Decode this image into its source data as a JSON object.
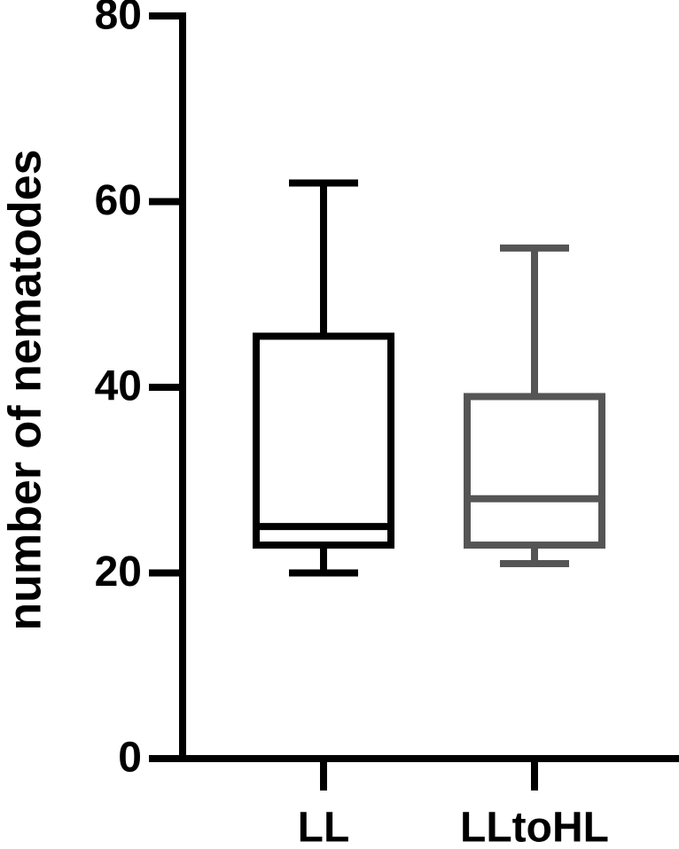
{
  "chart_data": {
    "type": "box",
    "y_label": "number of nematodes",
    "categories": [
      "LL",
      "LLtoHL"
    ],
    "boxes": [
      {
        "color": "#000000",
        "min": 20,
        "q1": 23,
        "median": 25,
        "q3": 45.5,
        "max": 62
      },
      {
        "color": "#555555",
        "min": 21,
        "q1": 23,
        "median": 28,
        "q3": 39,
        "max": 55
      }
    ],
    "ylim": [
      0,
      80
    ],
    "yticks": [
      0,
      20,
      40,
      60,
      80
    ]
  }
}
